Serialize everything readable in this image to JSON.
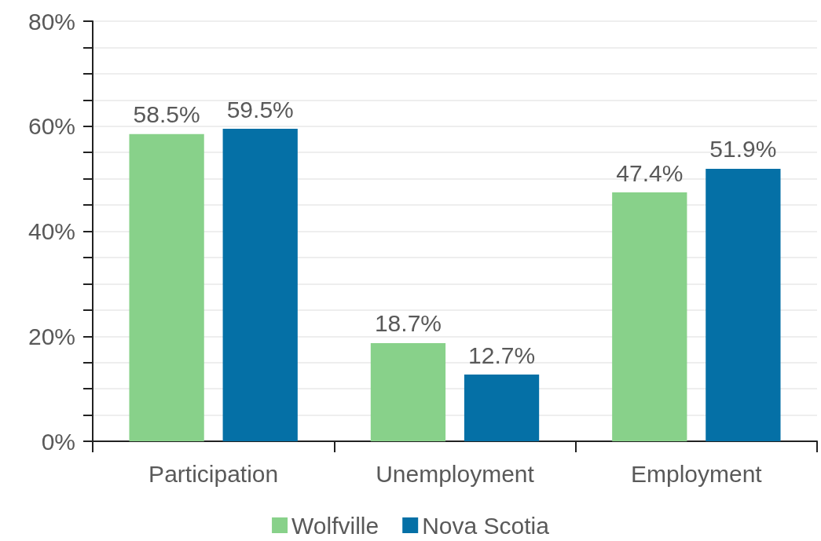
{
  "chart_data": {
    "type": "bar",
    "categories": [
      "Participation",
      "Unemployment",
      "Employment"
    ],
    "series": [
      {
        "name": "Wolfville",
        "color": "#88d18a",
        "values": [
          58.5,
          18.7,
          47.4
        ],
        "value_labels": [
          "58.5%",
          "18.7%",
          "47.4%"
        ]
      },
      {
        "name": "Nova Scotia",
        "color": "#0570a6",
        "values": [
          59.5,
          12.7,
          51.9
        ],
        "value_labels": [
          "59.5%",
          "12.7%",
          "51.9%"
        ]
      }
    ],
    "ylim": [
      0,
      80
    ],
    "yticks": [
      {
        "value": 0,
        "label": "0%"
      },
      {
        "value": 5,
        "label": null
      },
      {
        "value": 10,
        "label": null
      },
      {
        "value": 15,
        "label": null
      },
      {
        "value": 20,
        "label": "20%"
      },
      {
        "value": 25,
        "label": null
      },
      {
        "value": 30,
        "label": null
      },
      {
        "value": 35,
        "label": null
      },
      {
        "value": 40,
        "label": "40%"
      },
      {
        "value": 45,
        "label": null
      },
      {
        "value": 50,
        "label": null
      },
      {
        "value": 55,
        "label": null
      },
      {
        "value": 60,
        "label": "60%"
      },
      {
        "value": 65,
        "label": null
      },
      {
        "value": 70,
        "label": null
      },
      {
        "value": 75,
        "label": null
      },
      {
        "value": 80,
        "label": "80%"
      }
    ],
    "grid": "y",
    "legend": "bottom"
  }
}
